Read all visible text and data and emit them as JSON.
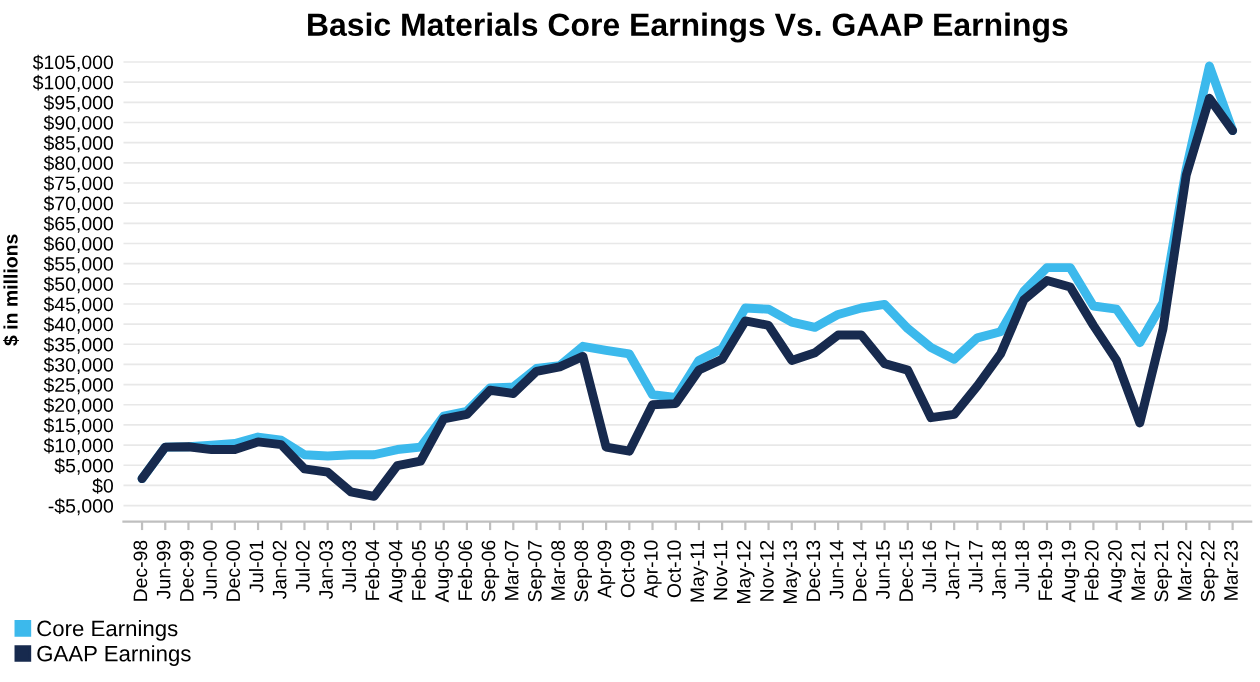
{
  "chart_data": {
    "type": "line",
    "title": "Basic Materials Core Earnings Vs. GAAP Earnings",
    "ylabel": "$ in millions",
    "categories": [
      "Dec-98",
      "Jun-99",
      "Dec-99",
      "Jun-00",
      "Dec-00",
      "Jul-01",
      "Jan-02",
      "Jul-02",
      "Jan-03",
      "Jul-03",
      "Feb-04",
      "Aug-04",
      "Feb-05",
      "Aug-05",
      "Feb-06",
      "Sep-06",
      "Mar-07",
      "Sep-07",
      "Mar-08",
      "Sep-08",
      "Apr-09",
      "Oct-09",
      "Apr-10",
      "Oct-10",
      "May-11",
      "Nov-11",
      "May-12",
      "Nov-12",
      "May-13",
      "Dec-13",
      "Jun-14",
      "Dec-14",
      "Jun-15",
      "Dec-15",
      "Jul-16",
      "Jan-17",
      "Jul-17",
      "Jan-18",
      "Jul-18",
      "Feb-19",
      "Aug-19",
      "Feb-20",
      "Aug-20",
      "Mar-21",
      "Sep-21",
      "Mar-22",
      "Sep-22",
      "Mar-23"
    ],
    "series": [
      {
        "name": "Core Earnings",
        "color": "#3cb9ec",
        "values": [
          1700,
          9500,
          9600,
          10000,
          10400,
          12000,
          11200,
          7600,
          7300,
          7600,
          7600,
          8900,
          9500,
          17200,
          18400,
          24200,
          24400,
          29000,
          29700,
          34500,
          33500,
          32600,
          22500,
          21800,
          31000,
          33900,
          44000,
          43700,
          40500,
          39200,
          42400,
          44000,
          44900,
          38900,
          34200,
          31300,
          36600,
          38100,
          48100,
          54000,
          54000,
          44500,
          43700,
          35400,
          45300,
          78500,
          104000,
          88000
        ]
      },
      {
        "name": "GAAP Earnings",
        "color": "#172a4e",
        "values": [
          1700,
          9500,
          9600,
          8900,
          8900,
          10800,
          10100,
          4100,
          3300,
          -1600,
          -2700,
          4900,
          6000,
          16500,
          17600,
          23600,
          22800,
          28300,
          29400,
          32000,
          9500,
          8500,
          20000,
          20300,
          28600,
          31300,
          40800,
          39700,
          31000,
          32900,
          37300,
          37300,
          30200,
          28600,
          16800,
          17600,
          24700,
          32600,
          46000,
          50800,
          49200,
          39700,
          31000,
          15500,
          38900,
          76900,
          96000,
          88000
        ]
      }
    ],
    "ylim": [
      -9000,
      106000
    ],
    "yticks": [
      {
        "value": -5000,
        "label": "-$5,000"
      },
      {
        "value": 0,
        "label": "$0"
      },
      {
        "value": 5000,
        "label": "$5,000"
      },
      {
        "value": 10000,
        "label": "$10,000"
      },
      {
        "value": 15000,
        "label": "$15,000"
      },
      {
        "value": 20000,
        "label": "$20,000"
      },
      {
        "value": 25000,
        "label": "$25,000"
      },
      {
        "value": 30000,
        "label": "$30,000"
      },
      {
        "value": 35000,
        "label": "$35,000"
      },
      {
        "value": 40000,
        "label": "$40,000"
      },
      {
        "value": 45000,
        "label": "$45,000"
      },
      {
        "value": 50000,
        "label": "$50,000"
      },
      {
        "value": 55000,
        "label": "$55,000"
      },
      {
        "value": 60000,
        "label": "$60,000"
      },
      {
        "value": 65000,
        "label": "$65,000"
      },
      {
        "value": 70000,
        "label": "$70,000"
      },
      {
        "value": 75000,
        "label": "$75,000"
      },
      {
        "value": 80000,
        "label": "$80,000"
      },
      {
        "value": 85000,
        "label": "$85,000"
      },
      {
        "value": 90000,
        "label": "$90,000"
      },
      {
        "value": 95000,
        "label": "$95,000"
      },
      {
        "value": 100000,
        "label": "$100,000"
      },
      {
        "value": 105000,
        "label": "$105,000"
      }
    ],
    "grid": "y",
    "legend": "bottom left",
    "marker": "none",
    "line_style": "solid"
  }
}
